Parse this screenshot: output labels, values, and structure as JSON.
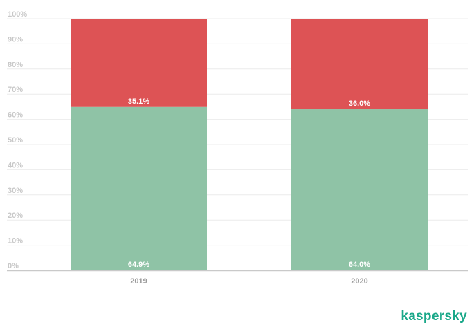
{
  "colors": {
    "share_a": "#8fc3a6",
    "share_b": "#dd5355",
    "grid": "#ececec",
    "axis": "#c9c9c9",
    "brand": "#1aa889"
  },
  "brand": {
    "logo_text": "kaspersky"
  },
  "chart_data": {
    "type": "bar",
    "stacked": true,
    "categories": [
      "2019",
      "2020"
    ],
    "series": [
      {
        "values": [
          64.9,
          64.0
        ],
        "labels": [
          "64.9%",
          "64.0%"
        ]
      },
      {
        "values": [
          35.1,
          36.0
        ],
        "labels": [
          "35.1%",
          "36.0%"
        ]
      }
    ],
    "ylim": [
      0,
      100
    ],
    "yticks": [
      "0%",
      "10%",
      "20%",
      "30%",
      "40%",
      "50%",
      "60%",
      "70%",
      "80%",
      "90%",
      "100%"
    ],
    "grid": true,
    "legend": "none",
    "title": "",
    "xlabel": "",
    "ylabel": ""
  }
}
